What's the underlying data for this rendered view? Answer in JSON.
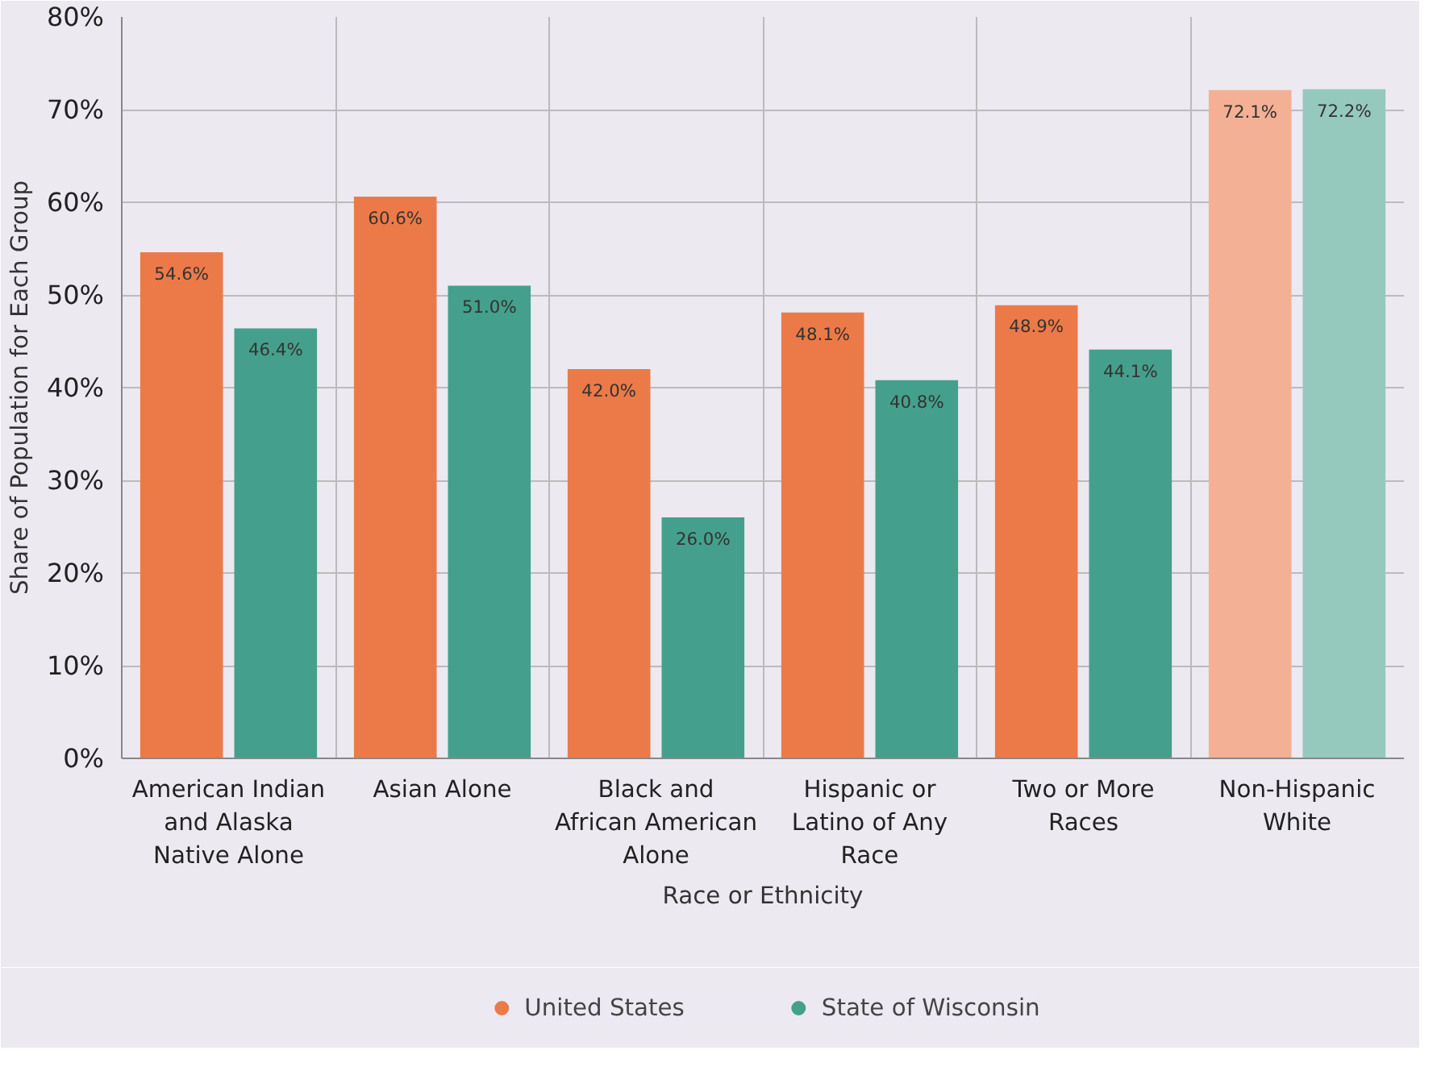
{
  "chart_data": {
    "type": "bar",
    "xlabel": "Race or Ethnicity",
    "ylabel": "Share of Population for Each Group",
    "categories": [
      "American Indian and Alaska Native Alone",
      "Asian Alone",
      "Black and African American Alone",
      "Hispanic or Latino of Any Race",
      "Two or More Races",
      "Non-Hispanic White"
    ],
    "series": [
      {
        "name": "United States",
        "color": "#ec7a48",
        "colors": [
          "#ec7a48",
          "#ec7a48",
          "#ec7a48",
          "#ec7a48",
          "#ec7a48",
          "#f4b094"
        ],
        "values": [
          54.6,
          60.6,
          42.0,
          48.1,
          48.9,
          72.1
        ],
        "value_labels": [
          "54.6%",
          "60.6%",
          "42.0%",
          "48.1%",
          "48.9%",
          "72.1%"
        ]
      },
      {
        "name": "State of Wisconsin",
        "color": "#44a08c",
        "colors": [
          "#44a08c",
          "#44a08c",
          "#44a08c",
          "#44a08c",
          "#44a08c",
          "#95c9bd"
        ],
        "values": [
          46.4,
          51.0,
          26.0,
          40.8,
          44.1,
          72.2
        ],
        "value_labels": [
          "46.4%",
          "51.0%",
          "26.0%",
          "40.8%",
          "44.1%",
          "72.2%"
        ]
      }
    ],
    "ylim": [
      0,
      80
    ],
    "yticks": [
      {
        "value": 0,
        "label": "0%"
      },
      {
        "value": 10,
        "label": "10%"
      },
      {
        "value": 20,
        "label": "20%"
      },
      {
        "value": 30,
        "label": "30%"
      },
      {
        "value": 40,
        "label": "40%"
      },
      {
        "value": 50,
        "label": "50%"
      },
      {
        "value": 60,
        "label": "60%"
      },
      {
        "value": 70,
        "label": "70%"
      },
      {
        "value": 80,
        "label": "80%"
      }
    ],
    "grid": true,
    "legend": "bottom"
  }
}
